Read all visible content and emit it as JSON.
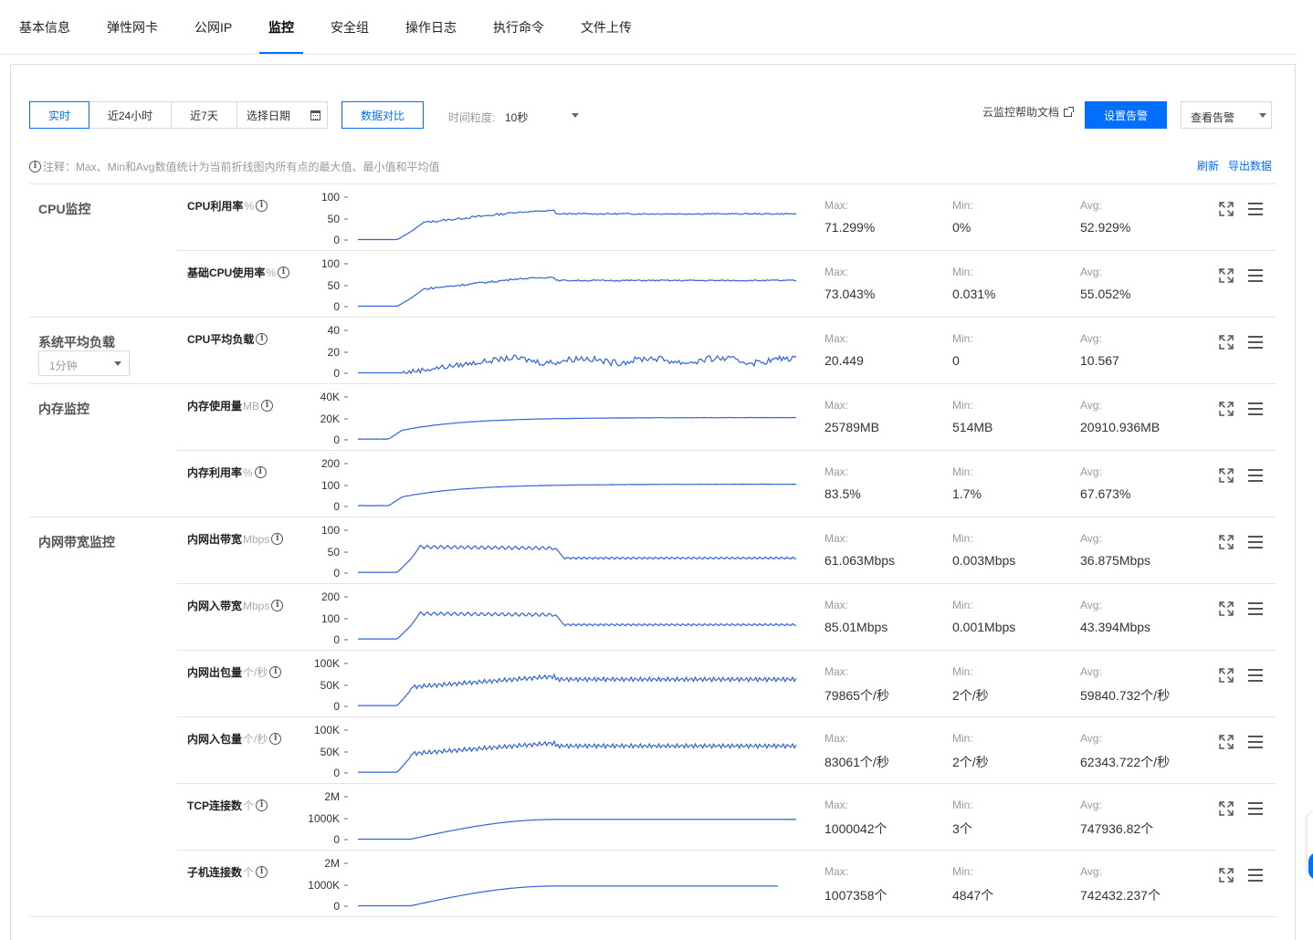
{
  "tabs": [
    {
      "label": "基本信息",
      "active": false
    },
    {
      "label": "弹性网卡",
      "active": false
    },
    {
      "label": "公网IP",
      "active": false
    },
    {
      "label": "监控",
      "active": true
    },
    {
      "label": "安全组",
      "active": false
    },
    {
      "label": "操作日志",
      "active": false
    },
    {
      "label": "执行命令",
      "active": false
    },
    {
      "label": "文件上传",
      "active": false
    }
  ],
  "toolbar": {
    "ranges": [
      "实时",
      "近24小时",
      "近7天"
    ],
    "active_range": "实时",
    "date_picker": "选择日期",
    "compare": "数据对比",
    "granularity_label": "时间粒度:",
    "granularity_value": "10秒",
    "help": "云监控帮助文档",
    "set_alarm": "设置告警",
    "view_alarm": "查看告警"
  },
  "note": "注释：Max、Min和Avg数值统计为当前折线图内所有点的最大值、最小值和平均值",
  "actions": {
    "refresh": "刷新",
    "export": "导出数据"
  },
  "stat_labels": {
    "max": "Max:",
    "min": "Min:",
    "avg": "Avg:"
  },
  "colors": {
    "accent": "#006eff",
    "line": "#2f63d8"
  },
  "groups": [
    {
      "title": "CPU监控",
      "select": null,
      "metrics": [
        {
          "name": "CPU利用率",
          "unit": "%",
          "ticks": [
            "100",
            "50",
            "0"
          ],
          "max": "71.299%",
          "min": "0%",
          "avg": "52.929%",
          "shape": "cpu"
        },
        {
          "name": "基础CPU使用率",
          "unit": "%",
          "ticks": [
            "100",
            "50",
            "0"
          ],
          "max": "73.043%",
          "min": "0.031%",
          "avg": "55.052%",
          "shape": "cpu"
        }
      ]
    },
    {
      "title": "系统平均负载",
      "select": "1分钟",
      "metrics": [
        {
          "name": "CPU平均负载",
          "unit": "",
          "ticks": [
            "40",
            "20",
            "0"
          ],
          "max": "20.449",
          "min": "0",
          "avg": "10.567",
          "shape": "load"
        }
      ]
    },
    {
      "title": "内存监控",
      "select": null,
      "metrics": [
        {
          "name": "内存使用量",
          "unit": "MB",
          "ticks": [
            "40K",
            "20K",
            "0"
          ],
          "max": "25789MB",
          "min": "514MB",
          "avg": "20910.936MB",
          "shape": "mem"
        },
        {
          "name": "内存利用率",
          "unit": "%",
          "ticks": [
            "200",
            "100",
            "0"
          ],
          "max": "83.5%",
          "min": "1.7%",
          "avg": "67.673%",
          "shape": "mem"
        }
      ]
    },
    {
      "title": "内网带宽监控",
      "select": null,
      "metrics": [
        {
          "name": "内网出带宽",
          "unit": "Mbps",
          "ticks": [
            "100",
            "50",
            "0"
          ],
          "max": "61.063Mbps",
          "min": "0.003Mbps",
          "avg": "36.875Mbps",
          "shape": "bw"
        },
        {
          "name": "内网入带宽",
          "unit": "Mbps",
          "ticks": [
            "200",
            "100",
            "0"
          ],
          "max": "85.01Mbps",
          "min": "0.001Mbps",
          "avg": "43.394Mbps",
          "shape": "bw"
        },
        {
          "name": "内网出包量",
          "unit": "个/秒",
          "ticks": [
            "100K",
            "50K",
            "0"
          ],
          "max": "79865个/秒",
          "min": "2个/秒",
          "avg": "59840.732个/秒",
          "shape": "pkt"
        },
        {
          "name": "内网入包量",
          "unit": "个/秒",
          "ticks": [
            "100K",
            "50K",
            "0"
          ],
          "max": "83061个/秒",
          "min": "2个/秒",
          "avg": "62343.722个/秒",
          "shape": "pkt"
        },
        {
          "name": "TCP连接数",
          "unit": "个",
          "ticks": [
            "2M",
            "1000K",
            "0"
          ],
          "max": "1000042个",
          "min": "3个",
          "avg": "747936.82个",
          "shape": "tcp"
        },
        {
          "name": "子机连接数",
          "unit": "个",
          "ticks": [
            "2M",
            "1000K",
            "0"
          ],
          "max": "1007358个",
          "min": "4847个",
          "avg": "742432.237个",
          "shape": "tcp2"
        }
      ]
    }
  ]
}
